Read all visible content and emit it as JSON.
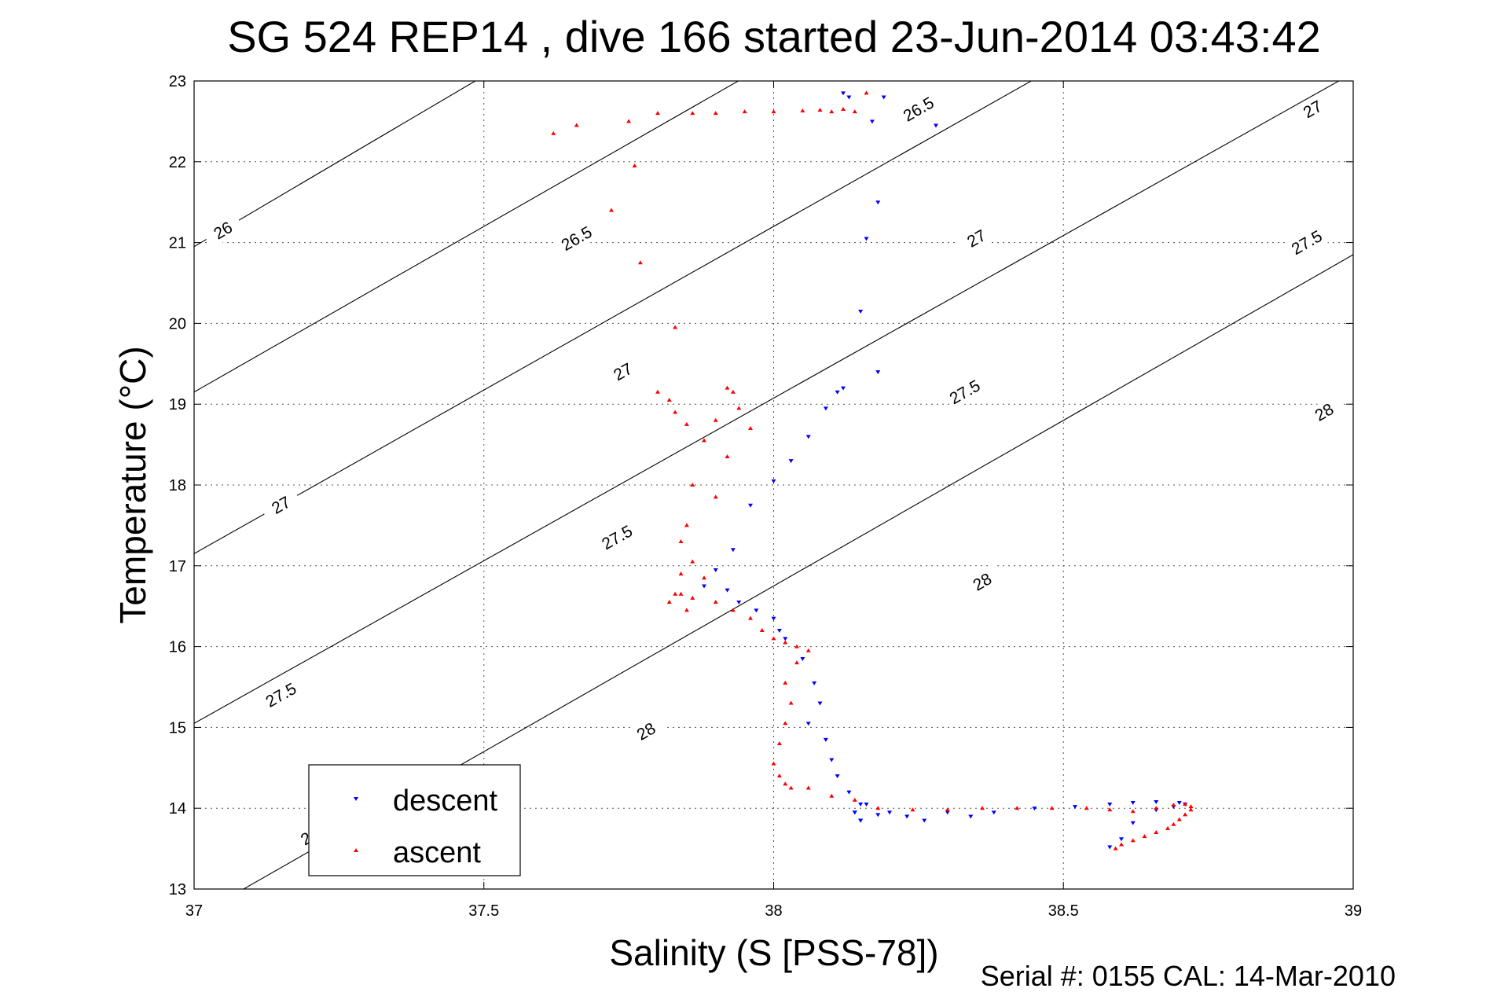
{
  "title": "SG 524   REP14  , dive 166 started 23-Jun-2014 03:43:42",
  "footer": "Serial #: 0155  CAL: 14-Mar-2010",
  "chart_data": {
    "type": "scatter",
    "xlabel": "Salinity (S [PSS-78])",
    "ylabel": "Temperature (°C)",
    "xlim": [
      37,
      39
    ],
    "ylim": [
      13,
      23
    ],
    "xticks": [
      "37",
      "37.5",
      "38",
      "38.5",
      "39"
    ],
    "yticks": [
      "13",
      "14",
      "15",
      "16",
      "17",
      "18",
      "19",
      "20",
      "21",
      "22",
      "23"
    ],
    "grid": true,
    "legend_position": "bottom-left",
    "legend": [
      {
        "label": "descent",
        "color": "#0000ff",
        "marker": "triangle-down"
      },
      {
        "label": "ascent",
        "color": "#ff0000",
        "marker": "triangle-up"
      }
    ],
    "contours": [
      {
        "label": "26",
        "points": [
          [
            37,
            20.95
          ],
          [
            39,
            29.4
          ]
        ],
        "label_positions": [
          [
            37.05,
            21.15
          ],
          [
            37.65,
            23.7
          ]
        ]
      },
      {
        "label": "26.5",
        "points": [
          [
            37,
            19.15
          ],
          [
            39,
            27.35
          ]
        ],
        "label_positions": [
          [
            37.66,
            21.05
          ],
          [
            38.25,
            22.65
          ]
        ]
      },
      {
        "label": "27",
        "points": [
          [
            37,
            17.15
          ],
          [
            39,
            25.25
          ]
        ],
        "label_positions": [
          [
            37.15,
            17.75
          ],
          [
            37.74,
            19.4
          ],
          [
            38.35,
            21.05
          ],
          [
            38.93,
            22.65
          ]
        ]
      },
      {
        "label": "27.5",
        "points": [
          [
            37,
            15.05
          ],
          [
            39,
            23.1
          ]
        ],
        "label_positions": [
          [
            37.15,
            15.4
          ],
          [
            37.73,
            17.35
          ],
          [
            38.33,
            19.15
          ],
          [
            38.92,
            21.0
          ]
        ]
      },
      {
        "label": "28",
        "points": [
          [
            37,
            12.65
          ],
          [
            39,
            20.85
          ]
        ],
        "label_positions": [
          [
            37.2,
            13.65
          ],
          [
            37.78,
            14.95
          ],
          [
            38.36,
            16.8
          ],
          [
            38.95,
            18.9
          ]
        ]
      }
    ],
    "series": [
      {
        "name": "descent",
        "color": "#0000ff",
        "marker": "triangle-down",
        "x": [
          38.12,
          38.13,
          38.19,
          38.28,
          38.17,
          38.18,
          38.16,
          38.15,
          38.18,
          38.12,
          38.11,
          38.09,
          38.06,
          38.03,
          38.0,
          37.96,
          37.93,
          37.9,
          37.88,
          37.92,
          37.94,
          37.97,
          38.0,
          38.01,
          38.02,
          38.05,
          38.07,
          38.08,
          38.06,
          38.09,
          38.1,
          38.11,
          38.13,
          38.15,
          38.14,
          38.15,
          38.16,
          38.14,
          38.15,
          38.18,
          38.2,
          38.23,
          38.26,
          38.3,
          38.34,
          38.38,
          38.45,
          38.52,
          38.58,
          38.62,
          38.66,
          38.7,
          38.71,
          38.69,
          38.66,
          38.62,
          38.6,
          38.58
        ],
        "y": [
          22.85,
          22.8,
          22.8,
          22.45,
          22.5,
          21.5,
          21.05,
          20.15,
          19.4,
          19.2,
          19.15,
          18.95,
          18.6,
          18.3,
          18.05,
          17.75,
          17.2,
          16.95,
          16.75,
          16.7,
          16.55,
          16.45,
          16.35,
          16.2,
          16.1,
          15.85,
          15.55,
          15.3,
          15.05,
          14.85,
          14.6,
          14.4,
          14.2,
          14.05,
          13.95,
          13.85,
          14.05,
          13.95,
          13.85,
          13.92,
          13.95,
          13.9,
          13.85,
          13.95,
          13.9,
          13.95,
          14.0,
          14.02,
          14.05,
          14.07,
          14.08,
          14.07,
          14.05,
          14.02,
          13.98,
          13.82,
          13.62,
          13.52
        ]
      },
      {
        "name": "ascent",
        "color": "#ff0000",
        "marker": "triangle-up",
        "x": [
          37.62,
          37.66,
          37.75,
          37.8,
          37.86,
          37.9,
          37.95,
          38.0,
          38.05,
          38.08,
          38.1,
          38.12,
          38.14,
          38.16,
          37.76,
          37.72,
          37.77,
          37.83,
          37.8,
          37.82,
          37.83,
          37.85,
          37.9,
          37.92,
          37.93,
          37.94,
          37.96,
          37.88,
          37.92,
          37.86,
          37.9,
          37.85,
          37.84,
          37.86,
          37.88,
          37.84,
          37.83,
          37.85,
          37.82,
          37.84,
          37.86,
          37.9,
          37.93,
          37.96,
          37.98,
          38.0,
          38.02,
          38.04,
          38.06,
          38.04,
          38.02,
          38.03,
          38.02,
          38.01,
          38.0,
          38.01,
          38.02,
          38.03,
          38.06,
          38.1,
          38.14,
          38.18,
          38.24,
          38.3,
          38.36,
          38.42,
          38.48,
          38.54,
          38.58,
          38.62,
          38.66,
          38.69,
          38.71,
          38.72,
          38.72,
          38.71,
          38.7,
          38.69,
          38.68,
          38.66,
          38.64,
          38.62,
          38.6,
          38.59
        ],
        "y": [
          22.35,
          22.45,
          22.5,
          22.6,
          22.6,
          22.6,
          22.62,
          22.62,
          22.63,
          22.64,
          22.62,
          22.65,
          22.62,
          22.85,
          21.95,
          21.4,
          20.75,
          19.95,
          19.15,
          19.05,
          18.9,
          18.75,
          18.8,
          19.2,
          19.15,
          18.95,
          18.7,
          18.55,
          18.35,
          18.0,
          17.85,
          17.5,
          17.3,
          17.05,
          16.85,
          16.9,
          16.65,
          16.45,
          16.55,
          16.65,
          16.6,
          16.55,
          16.45,
          16.35,
          16.2,
          16.1,
          16.05,
          16.0,
          15.95,
          15.8,
          15.55,
          15.3,
          15.05,
          14.8,
          14.55,
          14.4,
          14.3,
          14.25,
          14.25,
          14.15,
          14.1,
          14.0,
          13.98,
          13.98,
          14.0,
          14.0,
          14.0,
          14.0,
          13.98,
          13.96,
          14.0,
          14.04,
          14.05,
          14.02,
          13.98,
          13.92,
          13.86,
          13.8,
          13.75,
          13.7,
          13.65,
          13.6,
          13.55,
          13.5
        ]
      }
    ]
  }
}
